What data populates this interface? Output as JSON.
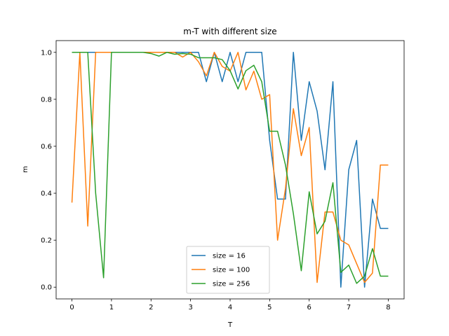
{
  "chart_data": {
    "type": "line",
    "title": "m-T with different size",
    "xlabel": "T",
    "ylabel": "m",
    "xlim": [
      -0.4,
      8.4
    ],
    "ylim": [
      -0.05,
      1.05
    ],
    "xticks": [
      0,
      1,
      2,
      3,
      4,
      5,
      6,
      7,
      8
    ],
    "yticks": [
      0.0,
      0.2,
      0.4,
      0.6,
      0.8,
      1.0
    ],
    "xtick_labels": [
      "0",
      "1",
      "2",
      "3",
      "4",
      "5",
      "6",
      "7",
      "8"
    ],
    "ytick_labels": [
      "0.0",
      "0.2",
      "0.4",
      "0.6",
      "0.8",
      "1.0"
    ],
    "grid": false,
    "legend_position": "bottom-center",
    "x": [
      0,
      0.2,
      0.4,
      0.6,
      0.8,
      1.0,
      1.2,
      1.4,
      1.6,
      1.8,
      2.0,
      2.2,
      2.4,
      2.6,
      2.8,
      3.0,
      3.2,
      3.4,
      3.6,
      3.8,
      4.0,
      4.2,
      4.4,
      4.6,
      4.8,
      5.0,
      5.2,
      5.4,
      5.6,
      5.8,
      6.0,
      6.2,
      6.4,
      6.6,
      6.8,
      7.0,
      7.2,
      7.4,
      7.6,
      7.8,
      8.0
    ],
    "series": [
      {
        "name": "size = 16",
        "color": "#1f77b4",
        "values": [
          1.0,
          1.0,
          1.0,
          1.0,
          1.0,
          1.0,
          1.0,
          1.0,
          1.0,
          1.0,
          1.0,
          1.0,
          1.0,
          1.0,
          1.0,
          1.0,
          1.0,
          0.875,
          1.0,
          0.875,
          1.0,
          0.875,
          1.0,
          1.0,
          1.0,
          0.625,
          0.375,
          0.375,
          1.0,
          0.625,
          0.875,
          0.75,
          0.5,
          0.875,
          0.0,
          0.5,
          0.625,
          0.0,
          0.375,
          0.25,
          0.25
        ]
      },
      {
        "name": "size = 100",
        "color": "#ff7f0e",
        "values": [
          0.36,
          1.0,
          0.26,
          1.0,
          1.0,
          1.0,
          1.0,
          1.0,
          1.0,
          1.0,
          1.0,
          1.0,
          1.0,
          1.0,
          0.98,
          1.0,
          0.96,
          0.9,
          1.0,
          0.94,
          0.92,
          1.0,
          0.84,
          0.92,
          0.8,
          0.82,
          0.2,
          0.42,
          0.76,
          0.56,
          0.68,
          0.02,
          0.32,
          0.32,
          0.2,
          0.18,
          0.1,
          0.02,
          0.06,
          0.52,
          0.52
        ]
      },
      {
        "name": "size = 256",
        "color": "#2ca02c",
        "values": [
          1.0,
          1.0,
          1.0,
          0.4,
          0.04,
          1.0,
          1.0,
          1.0,
          1.0,
          1.0,
          0.995,
          0.984,
          1.0,
          0.992,
          0.995,
          0.992,
          0.977,
          0.977,
          0.977,
          0.969,
          0.922,
          0.844,
          0.922,
          0.945,
          0.875,
          0.664,
          0.664,
          0.52,
          0.313,
          0.07,
          0.406,
          0.227,
          0.281,
          0.445,
          0.063,
          0.094,
          0.016,
          0.047,
          0.164,
          0.047,
          0.047
        ]
      }
    ]
  }
}
